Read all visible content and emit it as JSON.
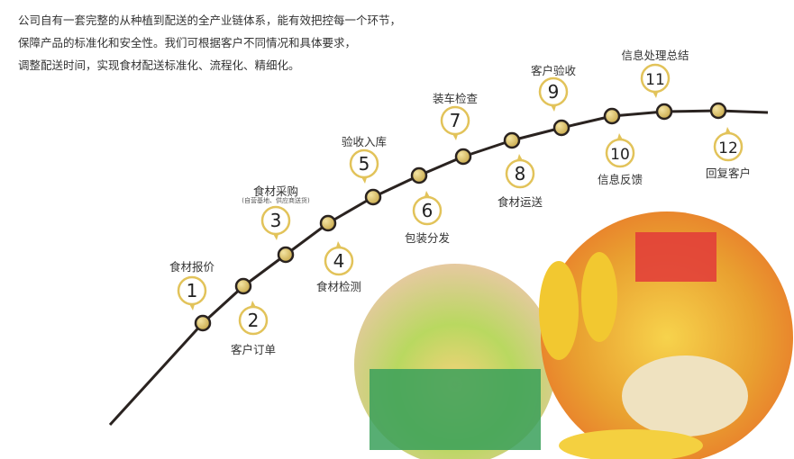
{
  "intro": [
    "公司自有一套完整的从种植到配送的全产业链体系，能有效把控每一个环节，",
    "保障产品的标准化和安全性。我们可根据客户不同情况和具体要求，",
    "调整配送时间，实现食材配送标准化、流程化、精细化。"
  ],
  "steps": [
    {
      "number": "1",
      "label": "食材报价"
    },
    {
      "number": "2",
      "label": "客户订单"
    },
    {
      "number": "3",
      "label": "食材采购",
      "note": "(自营基地、供应商送货)"
    },
    {
      "number": "4",
      "label": "食材检测"
    },
    {
      "number": "5",
      "label": "验收入库"
    },
    {
      "number": "6",
      "label": "包装分发"
    },
    {
      "number": "7",
      "label": "装车检查"
    },
    {
      "number": "8",
      "label": "食材运送"
    },
    {
      "number": "9",
      "label": "客户验收"
    },
    {
      "number": "10",
      "label": "信息反馈"
    },
    {
      "number": "11",
      "label": "信息处理总结"
    },
    {
      "number": "12",
      "label": "回复客户"
    }
  ],
  "colors": {
    "line": "#2a2320",
    "node": "#d9bf6a",
    "bubble_ring": "#e2c35a",
    "accent_orange": "#e9742a"
  }
}
